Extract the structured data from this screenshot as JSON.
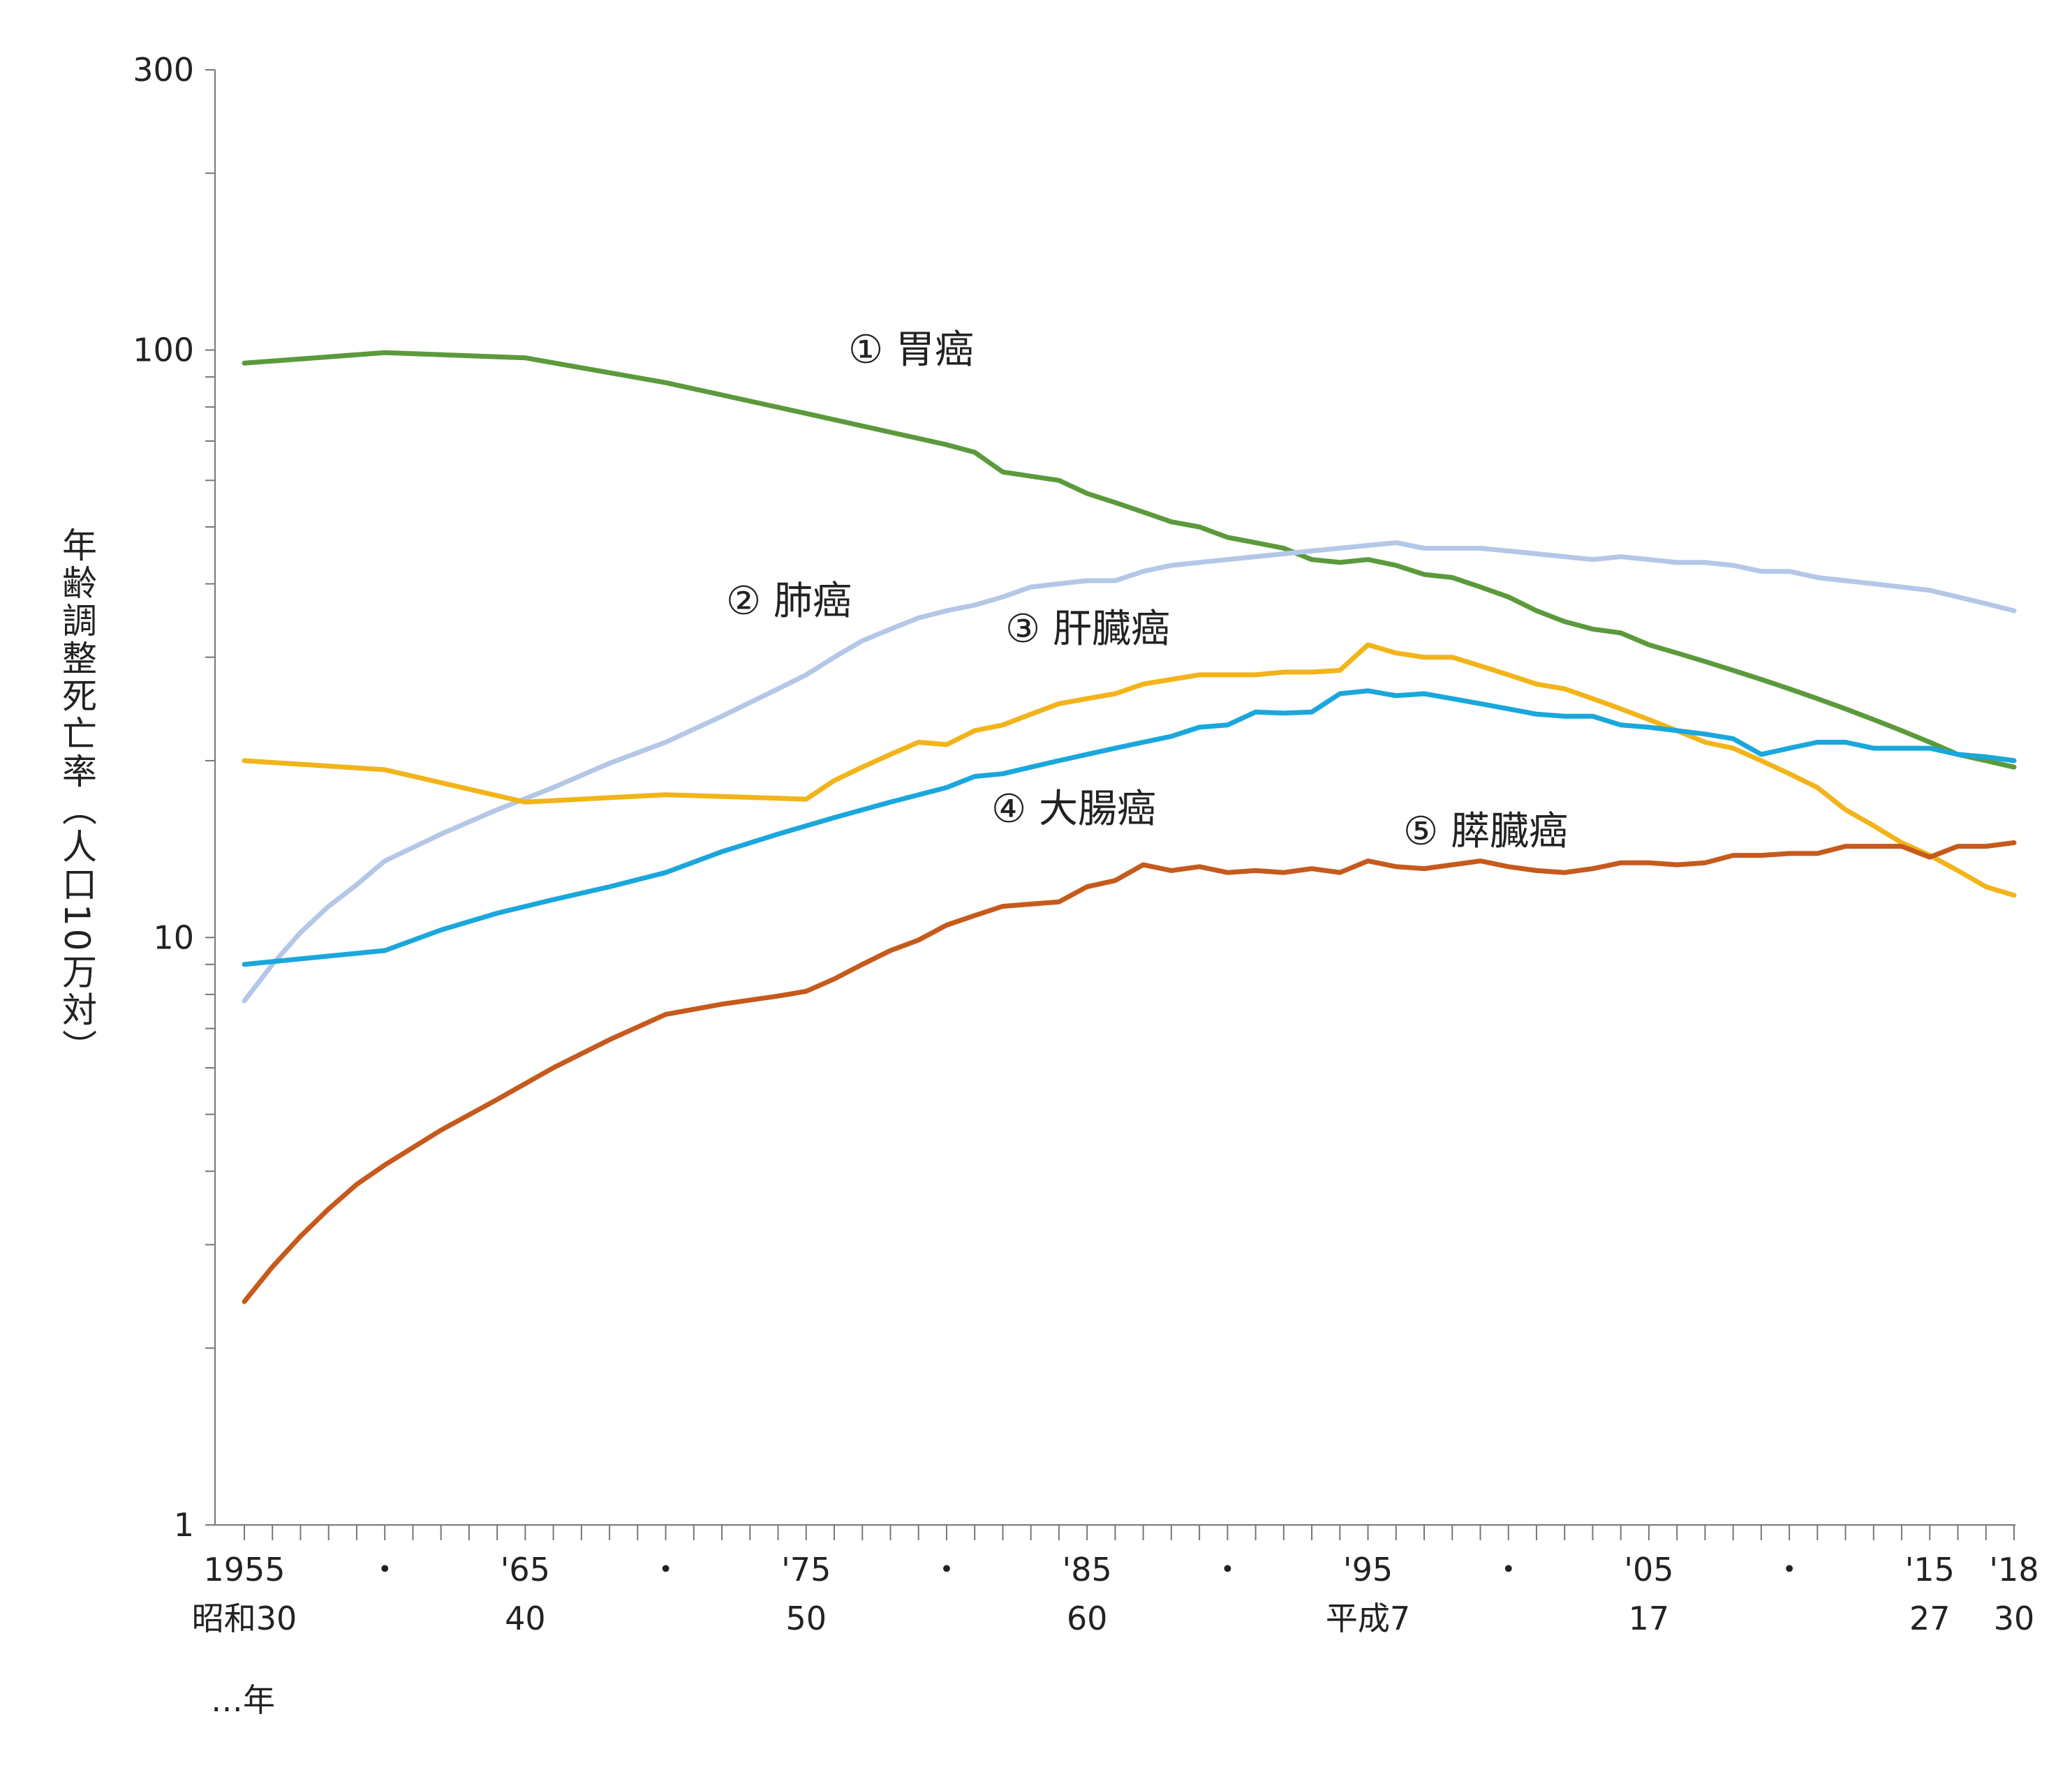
{
  "chart_data": {
    "type": "line",
    "yscale": "log",
    "ylim": [
      1,
      300
    ],
    "xlim": [
      1955,
      2018
    ],
    "ylabel": "年齢調整死亡率（人口10万対）",
    "y_ticks": [
      {
        "value": 1,
        "label": "1"
      },
      {
        "value": 10,
        "label": "10"
      },
      {
        "value": 100,
        "label": "100"
      },
      {
        "value": 300,
        "label": "300"
      }
    ],
    "x_tick_labels": [
      {
        "year": 1955,
        "top": "1955",
        "bottom": "昭和30"
      },
      {
        "year": 1960,
        "top": "・",
        "bottom": ""
      },
      {
        "year": 1965,
        "top": "'65",
        "bottom": "40"
      },
      {
        "year": 1970,
        "top": "・",
        "bottom": ""
      },
      {
        "year": 1975,
        "top": "'75",
        "bottom": "50"
      },
      {
        "year": 1980,
        "top": "・",
        "bottom": ""
      },
      {
        "year": 1985,
        "top": "'85",
        "bottom": "60"
      },
      {
        "year": 1990,
        "top": "・",
        "bottom": ""
      },
      {
        "year": 1995,
        "top": "'95",
        "bottom": "平成7"
      },
      {
        "year": 2000,
        "top": "・",
        "bottom": ""
      },
      {
        "year": 2005,
        "top": "'05",
        "bottom": "17"
      },
      {
        "year": 2010,
        "top": "・",
        "bottom": ""
      },
      {
        "year": 2015,
        "top": "'15",
        "bottom": "27"
      },
      {
        "year": 2018,
        "top": "'18",
        "bottom": "30"
      }
    ],
    "x_unit_label": "…年",
    "series": [
      {
        "name": "① 胃癌",
        "color": "#5b9a3c",
        "x": [
          1955,
          1960,
          1965,
          1970,
          1975,
          1980,
          1981,
          1982,
          1983,
          1984,
          1985,
          1986,
          1987,
          1988,
          1989,
          1990,
          1991,
          1992,
          1993,
          1994,
          1995,
          1996,
          1997,
          1998,
          1999,
          2000,
          2001,
          2002,
          2003,
          2004,
          2005,
          2006,
          2007,
          2008,
          2009,
          2010,
          2011,
          2012,
          2013,
          2014,
          2015,
          2016,
          2017,
          2018
        ],
        "values": [
          95,
          99,
          97,
          88,
          78,
          69,
          67,
          62,
          61,
          60,
          57,
          55,
          53,
          51,
          50,
          48,
          47,
          46,
          44,
          43.5,
          44,
          43,
          41.5,
          41,
          39.5,
          38,
          36,
          34.5,
          33.5,
          33,
          31.5,
          30.5,
          29.5,
          28.5,
          27.5,
          26.5,
          25.5,
          24.5,
          23.5,
          22.5,
          21.5,
          20.5,
          20,
          19.5
        ]
      },
      {
        "name": "② 肺癌",
        "color": "#b4c7e7",
        "x": [
          1955,
          1956,
          1957,
          1958,
          1959,
          1960,
          1962,
          1964,
          1966,
          1968,
          1970,
          1972,
          1974,
          1975,
          1976,
          1977,
          1978,
          1979,
          1980,
          1981,
          1982,
          1983,
          1984,
          1985,
          1986,
          1987,
          1988,
          1989,
          1990,
          1991,
          1992,
          1993,
          1994,
          1995,
          1996,
          1997,
          1998,
          1999,
          2000,
          2001,
          2002,
          2003,
          2004,
          2005,
          2006,
          2007,
          2008,
          2009,
          2010,
          2011,
          2012,
          2013,
          2014,
          2015,
          2016,
          2017,
          2018
        ],
        "values": [
          7.8,
          9.0,
          10.2,
          11.3,
          12.3,
          13.5,
          15,
          16.5,
          18,
          19.8,
          21.5,
          23.8,
          26.5,
          28,
          30,
          32,
          33.5,
          35,
          36,
          36.8,
          38,
          39.5,
          40,
          40.5,
          40.5,
          42,
          43,
          43.5,
          44,
          44.5,
          45,
          45.5,
          46,
          46.5,
          47,
          46,
          46,
          46,
          45.5,
          45,
          44.5,
          44,
          44.5,
          44,
          43.5,
          43.5,
          43,
          42,
          42,
          41,
          40.5,
          40,
          39.5,
          39,
          38,
          37,
          36
        ]
      },
      {
        "name": "③ 肝臓癌",
        "color": "#f2b41a",
        "x": [
          1955,
          1960,
          1965,
          1970,
          1975,
          1976,
          1977,
          1978,
          1979,
          1980,
          1981,
          1982,
          1983,
          1984,
          1985,
          1986,
          1987,
          1988,
          1989,
          1990,
          1991,
          1992,
          1993,
          1994,
          1995,
          1996,
          1997,
          1998,
          1999,
          2000,
          2001,
          2002,
          2003,
          2004,
          2005,
          2006,
          2007,
          2008,
          2009,
          2010,
          2011,
          2012,
          2013,
          2014,
          2015,
          2016,
          2017,
          2018
        ],
        "values": [
          20,
          19.3,
          17,
          17.5,
          17.2,
          18.5,
          19.5,
          20.5,
          21.5,
          21.3,
          22.5,
          23,
          24,
          25,
          25.5,
          26,
          27,
          27.5,
          28,
          28,
          28,
          28.3,
          28.3,
          28.5,
          31.5,
          30.5,
          30,
          30,
          29,
          28,
          27,
          26.5,
          25.5,
          24.5,
          23.5,
          22.5,
          21.5,
          21,
          20,
          19,
          18,
          16.5,
          15.5,
          14.5,
          13.8,
          13,
          12.2,
          11.8
        ]
      },
      {
        "name": "④ 大腸癌",
        "color": "#1aa7dc",
        "x": [
          1955,
          1960,
          1962,
          1964,
          1966,
          1968,
          1970,
          1972,
          1974,
          1976,
          1978,
          1980,
          1981,
          1982,
          1983,
          1984,
          1985,
          1986,
          1987,
          1988,
          1989,
          1990,
          1991,
          1992,
          1993,
          1994,
          1995,
          1996,
          1997,
          1998,
          1999,
          2000,
          2001,
          2002,
          2003,
          2004,
          2005,
          2006,
          2007,
          2008,
          2009,
          2010,
          2011,
          2012,
          2013,
          2014,
          2015,
          2016,
          2017,
          2018
        ],
        "values": [
          9,
          9.5,
          10.3,
          11,
          11.6,
          12.2,
          12.9,
          14,
          15,
          16,
          17,
          18,
          18.8,
          19,
          19.5,
          20,
          20.5,
          21,
          21.5,
          22,
          22.8,
          23,
          24.2,
          24.1,
          24.2,
          26,
          26.3,
          25.8,
          26,
          25.5,
          25,
          24.5,
          24,
          23.8,
          23.8,
          23,
          22.8,
          22.5,
          22.2,
          21.8,
          20.5,
          21,
          21.5,
          21.5,
          21,
          21,
          21,
          20.5,
          20.3,
          20
        ]
      },
      {
        "name": "⑤ 膵臓癌",
        "color": "#c65a1c",
        "x": [
          1955,
          1956,
          1957,
          1958,
          1959,
          1960,
          1962,
          1964,
          1966,
          1968,
          1970,
          1972,
          1974,
          1975,
          1976,
          1977,
          1978,
          1979,
          1980,
          1981,
          1982,
          1983,
          1984,
          1985,
          1986,
          1987,
          1988,
          1989,
          1990,
          1991,
          1992,
          1993,
          1994,
          1995,
          1996,
          1997,
          1998,
          1999,
          2000,
          2001,
          2002,
          2003,
          2004,
          2005,
          2006,
          2007,
          2008,
          2009,
          2010,
          2011,
          2012,
          2013,
          2014,
          2015,
          2016,
          2017,
          2018
        ],
        "values": [
          2.4,
          2.75,
          3.1,
          3.45,
          3.8,
          4.1,
          4.7,
          5.3,
          6.0,
          6.7,
          7.4,
          7.7,
          7.95,
          8.1,
          8.5,
          9.0,
          9.5,
          9.9,
          10.5,
          10.9,
          11.3,
          11.4,
          11.5,
          12.2,
          12.5,
          13.3,
          13.0,
          13.2,
          12.9,
          13.0,
          12.9,
          13.1,
          12.9,
          13.5,
          13.2,
          13.1,
          13.3,
          13.5,
          13.2,
          13.0,
          12.9,
          13.1,
          13.4,
          13.4,
          13.3,
          13.4,
          13.8,
          13.8,
          13.9,
          13.9,
          14.3,
          14.3,
          14.3,
          13.7,
          14.3,
          14.3,
          14.5
        ]
      }
    ]
  }
}
